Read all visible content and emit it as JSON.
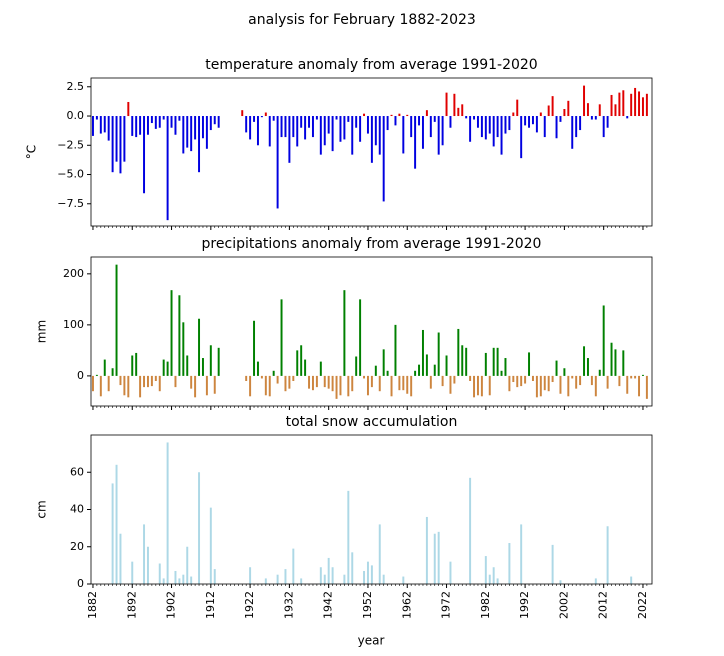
{
  "chart_data": {
    "type": "bar",
    "title": "analysis for February 1882-2023",
    "xlabel": "year",
    "xlim": [
      1881.5,
      2024.3
    ],
    "xticks": [
      1882,
      1892,
      1902,
      1912,
      1922,
      1932,
      1942,
      1952,
      1962,
      1972,
      1982,
      1992,
      2002,
      2012,
      2022
    ],
    "x": [
      1882,
      1883,
      1884,
      1885,
      1886,
      1887,
      1888,
      1889,
      1890,
      1891,
      1892,
      1893,
      1894,
      1895,
      1896,
      1897,
      1898,
      1899,
      1900,
      1901,
      1902,
      1903,
      1904,
      1905,
      1906,
      1907,
      1908,
      1909,
      1910,
      1911,
      1912,
      1913,
      1914,
      1915,
      1916,
      1917,
      1918,
      1919,
      1920,
      1921,
      1922,
      1923,
      1924,
      1925,
      1926,
      1927,
      1928,
      1929,
      1930,
      1931,
      1932,
      1933,
      1934,
      1935,
      1936,
      1937,
      1938,
      1939,
      1940,
      1941,
      1942,
      1943,
      1944,
      1945,
      1946,
      1947,
      1948,
      1949,
      1950,
      1951,
      1952,
      1953,
      1954,
      1955,
      1956,
      1957,
      1958,
      1959,
      1960,
      1961,
      1962,
      1963,
      1964,
      1965,
      1966,
      1967,
      1968,
      1969,
      1970,
      1971,
      1972,
      1973,
      1974,
      1975,
      1976,
      1977,
      1978,
      1979,
      1980,
      1981,
      1982,
      1983,
      1984,
      1985,
      1986,
      1987,
      1988,
      1989,
      1990,
      1991,
      1992,
      1993,
      1994,
      1995,
      1996,
      1997,
      1998,
      1999,
      2000,
      2001,
      2002,
      2003,
      2004,
      2005,
      2006,
      2007,
      2008,
      2009,
      2010,
      2011,
      2012,
      2013,
      2014,
      2015,
      2016,
      2017,
      2018,
      2019,
      2020,
      2021,
      2022,
      2023
    ],
    "panels": [
      {
        "title": "temperature anomaly from average 1991-2020",
        "ylabel": "°C",
        "pos_color": "#e00000",
        "neg_color": "#0000e0",
        "ylim": [
          -9.4,
          3.25
        ],
        "yticks": [
          2.5,
          {
            "value": 0,
            "label": "0.0"
          },
          {
            "value": -2.5,
            "label": "−2.5"
          },
          {
            "value": -5,
            "label": "−5.0"
          },
          {
            "value": -7.5,
            "label": "−7.5"
          }
        ],
        "values": [
          -1.7,
          -0.3,
          -1.5,
          -1.4,
          -2.1,
          -4.8,
          -3.9,
          -4.9,
          -3.9,
          1.2,
          -1.7,
          -1.8,
          -1.6,
          -6.6,
          -1.6,
          -0.6,
          -1.1,
          -1.0,
          -0.3,
          -8.9,
          -1.0,
          -1.6,
          -0.4,
          -3.2,
          -2.7,
          -3.0,
          -2.0,
          -4.8,
          -1.9,
          -2.8,
          -1.2,
          -0.7,
          -1.0,
          null,
          null,
          null,
          null,
          null,
          0.5,
          -1.4,
          -2.0,
          -0.5,
          -2.5,
          -0.1,
          0.3,
          -2.6,
          -0.4,
          -7.9,
          -1.8,
          -1.8,
          -4.0,
          -1.8,
          -2.6,
          -1.0,
          -2.0,
          -1.0,
          -1.8,
          -0.3,
          -3.3,
          -2.5,
          -1.5,
          -3.0,
          -0.3,
          -2.2,
          -2.0,
          -0.5,
          -3.3,
          -1.0,
          -2.2,
          0.2,
          -1.5,
          -4.0,
          -2.5,
          -3.3,
          -7.3,
          -1.2,
          0.1,
          -0.8,
          0.2,
          -3.2,
          0.1,
          -1.8,
          -4.5,
          -0.8,
          -2.8,
          0.5,
          -1.8,
          -0.5,
          -3.3,
          -2.5,
          2.0,
          -1.0,
          1.9,
          0.7,
          1.0,
          -0.2,
          -2.2,
          -0.3,
          -1.0,
          -1.8,
          -2.0,
          -1.5,
          -2.6,
          -1.8,
          -3.3,
          -1.5,
          -1.2,
          0.3,
          1.4,
          -3.6,
          -0.8,
          -1.0,
          -0.7,
          -1.4,
          0.3,
          -1.8,
          0.9,
          1.7,
          -1.9,
          -0.5,
          0.6,
          1.3,
          -2.8,
          -1.8,
          -1.2,
          2.6,
          1.1,
          -0.3,
          -0.3,
          1.0,
          -1.8,
          -1.0,
          1.8,
          1.0,
          2.0,
          2.2,
          -0.2,
          1.9,
          2.4,
          2.1,
          1.6,
          1.9
        ]
      },
      {
        "title": "precipitations anomaly from average 1991-2020",
        "ylabel": "mm",
        "pos_color": "#008000",
        "neg_color": "#cd853f",
        "ylim": [
          -59,
          233
        ],
        "yticks": [
          0,
          100,
          200
        ],
        "values": [
          -30,
          2,
          -40,
          32,
          -30,
          15,
          218,
          -18,
          -38,
          -42,
          40,
          45,
          -42,
          -22,
          -22,
          -20,
          -10,
          -30,
          32,
          28,
          168,
          -22,
          158,
          105,
          40,
          -25,
          -42,
          112,
          35,
          -38,
          60,
          -35,
          55,
          null,
          null,
          null,
          null,
          null,
          null,
          -10,
          -40,
          108,
          28,
          -5,
          -38,
          -40,
          10,
          -15,
          150,
          -30,
          -25,
          -10,
          50,
          60,
          32,
          -25,
          -28,
          -22,
          28,
          -22,
          -25,
          -30,
          -45,
          -38,
          168,
          -40,
          -30,
          38,
          150,
          -5,
          -38,
          -22,
          20,
          -30,
          52,
          10,
          -40,
          100,
          -28,
          -28,
          -35,
          -40,
          10,
          22,
          90,
          42,
          -25,
          22,
          85,
          -20,
          40,
          -35,
          -15,
          92,
          60,
          55,
          -10,
          -42,
          -38,
          -40,
          45,
          -38,
          55,
          55,
          10,
          35,
          -30,
          -12,
          -22,
          -20,
          -15,
          46,
          -10,
          -42,
          -40,
          -28,
          -30,
          -12,
          30,
          -35,
          15,
          -40,
          -5,
          -25,
          -18,
          58,
          35,
          -18,
          -40,
          12,
          138,
          -25,
          65,
          52,
          -20,
          50,
          -35,
          -5,
          -5,
          -40,
          2,
          -45
        ]
      },
      {
        "title": "total snow accumulation",
        "ylabel": "cm",
        "pos_color": "#add8e6",
        "neg_color": "#add8e6",
        "ylim": [
          0,
          80
        ],
        "yticks": [
          0,
          20,
          40,
          60
        ],
        "values": [
          0,
          0,
          0,
          0,
          0,
          54,
          64,
          27,
          0,
          0,
          12,
          0,
          0,
          32,
          20,
          0,
          0,
          11,
          3,
          76,
          0,
          7,
          3,
          5,
          20,
          4,
          0,
          60,
          0,
          0,
          41,
          8,
          0,
          0,
          0,
          0,
          0,
          0,
          0,
          0,
          9,
          0,
          0,
          0,
          3,
          0,
          0,
          5,
          0,
          8,
          0,
          19,
          0,
          3,
          0,
          0,
          0,
          0,
          9,
          5,
          14,
          9,
          0,
          0,
          5,
          50,
          17,
          0,
          0,
          7,
          12,
          10,
          0,
          32,
          5,
          0,
          0,
          0,
          0,
          4,
          0,
          0,
          0,
          0,
          0,
          36,
          0,
          27,
          28,
          0,
          0,
          12,
          0,
          0,
          0,
          0,
          57,
          0,
          0,
          0,
          15,
          5,
          9,
          3,
          0,
          0,
          22,
          0,
          0,
          32,
          0,
          0,
          0,
          0,
          0,
          0,
          0,
          21,
          0,
          2,
          0,
          0,
          0,
          0,
          0,
          0,
          0,
          0,
          3,
          0,
          0,
          31,
          0,
          0,
          0,
          0,
          0,
          4,
          0,
          0,
          0,
          0
        ]
      }
    ]
  }
}
